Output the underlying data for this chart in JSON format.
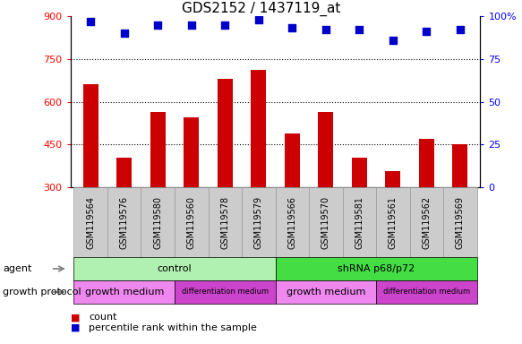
{
  "title": "GDS2152 / 1437119_at",
  "samples": [
    "GSM119564",
    "GSM119576",
    "GSM119580",
    "GSM119560",
    "GSM119578",
    "GSM119579",
    "GSM119566",
    "GSM119570",
    "GSM119581",
    "GSM119561",
    "GSM119562",
    "GSM119569"
  ],
  "counts": [
    660,
    405,
    565,
    545,
    680,
    710,
    490,
    565,
    405,
    355,
    470,
    450
  ],
  "percentile_ranks": [
    97,
    90,
    95,
    95,
    95,
    98,
    93,
    92,
    92,
    86,
    91,
    92
  ],
  "ylim_left": [
    300,
    900
  ],
  "ylim_right": [
    0,
    100
  ],
  "yticks_left": [
    300,
    450,
    600,
    750,
    900
  ],
  "yticks_right": [
    0,
    25,
    50,
    75,
    100
  ],
  "bar_color": "#cc0000",
  "dot_color": "#0000cc",
  "dot_size": 28,
  "bar_width": 0.45,
  "agent_groups": [
    {
      "label": "control",
      "start": 0,
      "end": 6,
      "color": "#b0f0b0"
    },
    {
      "label": "shRNA p68/p72",
      "start": 6,
      "end": 12,
      "color": "#44dd44"
    }
  ],
  "growth_protocol_groups": [
    {
      "label": "growth medium",
      "start": 0,
      "end": 3,
      "color": "#ee88ee"
    },
    {
      "label": "differentiation medium",
      "start": 3,
      "end": 6,
      "color": "#cc44cc"
    },
    {
      "label": "growth medium",
      "start": 6,
      "end": 9,
      "color": "#ee88ee"
    },
    {
      "label": "differentiation medium",
      "start": 9,
      "end": 12,
      "color": "#cc44cc"
    }
  ],
  "agent_label": "agent",
  "growth_protocol_label": "growth protocol",
  "sample_box_color": "#cccccc",
  "sample_box_edge": "#999999",
  "legend_count_color": "#cc0000",
  "legend_percentile_color": "#0000cc",
  "grid_lines": [
    450,
    600,
    750
  ],
  "title_fontsize": 11,
  "tick_fontsize": 8,
  "label_fontsize": 8,
  "sample_fontsize": 7
}
